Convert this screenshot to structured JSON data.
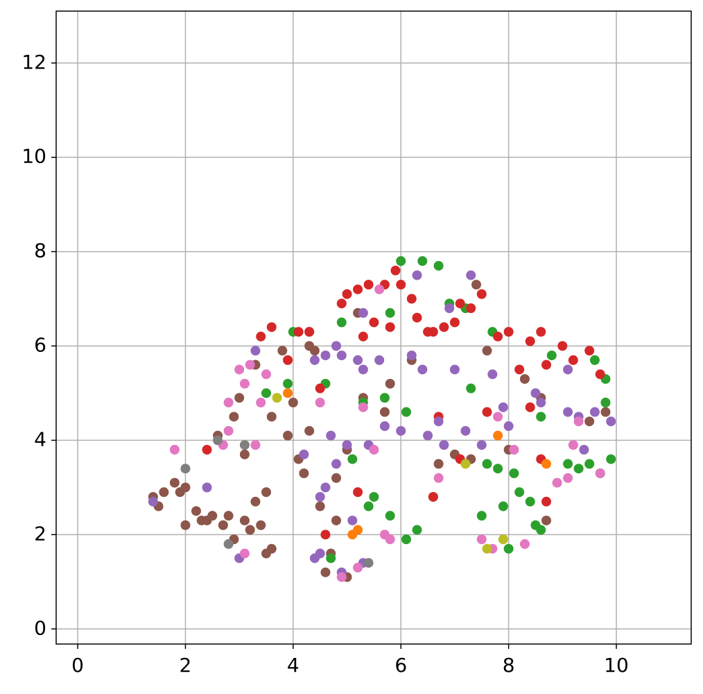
{
  "chart_data": {
    "type": "scatter",
    "xlim": [
      -0.4,
      11.39
    ],
    "ylim": [
      -0.32,
      13.1
    ],
    "xticks": [
      0,
      2,
      4,
      6,
      8,
      10
    ],
    "yticks": [
      0,
      2,
      4,
      6,
      8,
      10,
      12
    ],
    "grid": true,
    "series": [
      {
        "color": "#8c564b",
        "x": [
          1.4,
          1.5,
          1.8,
          1.9,
          2.0,
          2.0,
          2.2,
          2.3,
          2.5,
          2.6,
          2.7,
          2.8,
          2.9,
          2.9,
          3.0,
          3.1,
          3.1,
          3.2,
          3.3,
          3.4,
          3.5,
          3.5,
          3.6,
          3.8,
          3.9,
          4.1,
          4.2,
          4.3,
          4.3,
          4.5,
          4.6,
          4.8,
          4.8,
          5.0,
          5.3,
          5.2,
          5.7,
          5.8,
          6.2,
          6.7,
          7.0,
          7.3,
          7.6,
          8.0,
          8.3,
          8.6,
          8.7,
          9.5,
          9.8,
          3.6,
          3.3,
          2.4,
          1.6,
          4.7,
          5.0,
          4.0,
          4.4,
          7.4
        ],
        "values": [
          2.8,
          2.6,
          3.1,
          2.9,
          2.2,
          3.0,
          2.5,
          2.3,
          2.4,
          4.1,
          2.2,
          2.4,
          1.9,
          4.5,
          4.9,
          3.7,
          2.3,
          2.1,
          5.6,
          2.2,
          2.9,
          1.6,
          4.5,
          5.9,
          4.1,
          3.6,
          3.3,
          4.2,
          6.0,
          2.6,
          1.2,
          3.2,
          2.3,
          3.8,
          4.9,
          6.7,
          4.6,
          5.2,
          5.7,
          3.5,
          3.7,
          3.6,
          5.9,
          3.8,
          5.3,
          4.9,
          2.3,
          4.4,
          4.6,
          1.7,
          2.7,
          2.3,
          2.9,
          1.6,
          1.1,
          4.8,
          5.9,
          7.3
        ]
      },
      {
        "color": "#2ca02c",
        "x": [
          3.5,
          3.9,
          4.0,
          4.3,
          4.6,
          4.9,
          5.3,
          5.4,
          5.5,
          5.7,
          5.8,
          6.0,
          6.1,
          6.3,
          6.4,
          6.7,
          6.9,
          7.2,
          7.3,
          7.5,
          7.6,
          7.8,
          7.9,
          8.0,
          8.1,
          8.2,
          8.4,
          8.5,
          8.6,
          8.8,
          9.1,
          9.3,
          9.5,
          9.6,
          9.8,
          9.8,
          9.9,
          6.1,
          5.8,
          4.7,
          5.1,
          6.6,
          7.7,
          8.6,
          9.7
        ],
        "values": [
          5.0,
          5.2,
          6.3,
          6.3,
          5.2,
          6.5,
          4.8,
          2.6,
          2.8,
          4.9,
          2.4,
          7.8,
          1.9,
          2.1,
          7.8,
          7.7,
          6.9,
          6.8,
          5.1,
          2.4,
          3.5,
          3.4,
          2.6,
          1.7,
          3.3,
          2.9,
          2.7,
          2.2,
          2.1,
          5.8,
          3.5,
          3.4,
          3.5,
          5.7,
          4.8,
          5.3,
          3.6,
          4.6,
          6.7,
          1.5,
          3.6,
          2.8,
          6.3,
          4.5,
          3.3
        ]
      },
      {
        "color": "#d62728",
        "x": [
          2.4,
          3.4,
          3.6,
          3.9,
          4.1,
          4.3,
          4.5,
          4.9,
          5.0,
          5.2,
          5.4,
          5.5,
          5.7,
          5.8,
          5.9,
          6.0,
          6.3,
          6.5,
          6.6,
          6.8,
          7.0,
          7.1,
          7.3,
          7.5,
          7.8,
          8.0,
          8.2,
          8.4,
          8.6,
          8.7,
          9.0,
          9.2,
          9.5,
          9.7,
          8.4,
          8.6,
          7.6,
          7.1,
          6.6,
          6.7,
          5.2,
          4.6,
          8.7,
          6.2,
          5.3
        ],
        "values": [
          3.8,
          6.2,
          6.4,
          5.7,
          6.3,
          6.3,
          5.1,
          6.9,
          7.1,
          7.2,
          7.3,
          6.5,
          7.3,
          6.4,
          7.6,
          7.3,
          6.6,
          6.3,
          6.3,
          6.4,
          6.5,
          6.9,
          6.8,
          7.1,
          6.2,
          6.3,
          5.5,
          6.1,
          6.3,
          5.6,
          6.0,
          5.7,
          5.9,
          5.4,
          4.7,
          3.6,
          4.6,
          3.6,
          2.8,
          4.5,
          2.9,
          2.0,
          2.7,
          7.0,
          6.2
        ]
      },
      {
        "color": "#9467bd",
        "x": [
          1.4,
          2.4,
          3.0,
          3.3,
          4.2,
          4.4,
          4.5,
          4.6,
          4.8,
          4.7,
          4.9,
          5.0,
          5.2,
          5.3,
          5.4,
          5.6,
          5.7,
          6.0,
          6.2,
          6.4,
          6.5,
          6.7,
          6.8,
          6.9,
          7.0,
          7.2,
          7.3,
          7.5,
          7.7,
          7.9,
          8.0,
          8.5,
          8.6,
          9.1,
          9.3,
          9.6,
          9.9,
          9.1,
          9.4,
          4.5,
          4.4,
          4.9,
          5.3,
          5.1,
          4.6,
          4.8,
          6.3,
          5.3
        ],
        "values": [
          2.7,
          3.0,
          1.5,
          5.9,
          3.7,
          5.7,
          1.6,
          5.8,
          6.0,
          4.1,
          5.8,
          3.9,
          5.7,
          5.5,
          3.9,
          5.7,
          4.3,
          4.2,
          5.8,
          5.5,
          4.1,
          4.4,
          3.9,
          6.8,
          5.5,
          4.2,
          7.5,
          3.9,
          5.4,
          4.7,
          4.3,
          5.0,
          4.8,
          4.6,
          4.5,
          4.6,
          4.4,
          5.5,
          3.8,
          2.8,
          1.5,
          1.2,
          1.4,
          2.3,
          3.0,
          3.5,
          7.5,
          6.7
        ]
      },
      {
        "color": "#e377c2",
        "x": [
          1.8,
          2.7,
          2.8,
          2.8,
          3.0,
          3.1,
          3.2,
          3.4,
          3.3,
          3.1,
          4.5,
          4.9,
          5.2,
          5.3,
          5.5,
          5.6,
          5.7,
          5.8,
          6.7,
          7.5,
          7.7,
          7.8,
          8.1,
          8.3,
          8.9,
          9.1,
          9.3,
          9.7,
          9.2,
          3.5
        ],
        "values": [
          3.8,
          3.9,
          4.2,
          4.8,
          5.5,
          5.2,
          5.6,
          4.8,
          3.9,
          1.6,
          4.8,
          1.1,
          1.3,
          4.7,
          3.8,
          7.2,
          2.0,
          1.9,
          3.2,
          1.9,
          1.7,
          4.5,
          3.8,
          1.8,
          3.1,
          3.2,
          4.4,
          3.3,
          3.9,
          5.4
        ]
      },
      {
        "color": "#7f7f7f",
        "x": [
          2.0,
          2.6,
          2.8,
          3.1,
          5.4
        ],
        "values": [
          3.4,
          4.0,
          1.8,
          3.9,
          1.4
        ]
      },
      {
        "color": "#bcbd22",
        "x": [
          3.7,
          7.2,
          7.6,
          7.9
        ],
        "values": [
          4.9,
          3.5,
          1.7,
          1.9
        ]
      },
      {
        "color": "#ff7f0e",
        "x": [
          3.9,
          5.1,
          5.2,
          7.8,
          8.7
        ],
        "values": [
          5.0,
          2.0,
          2.1,
          4.1,
          3.5
        ]
      }
    ]
  }
}
